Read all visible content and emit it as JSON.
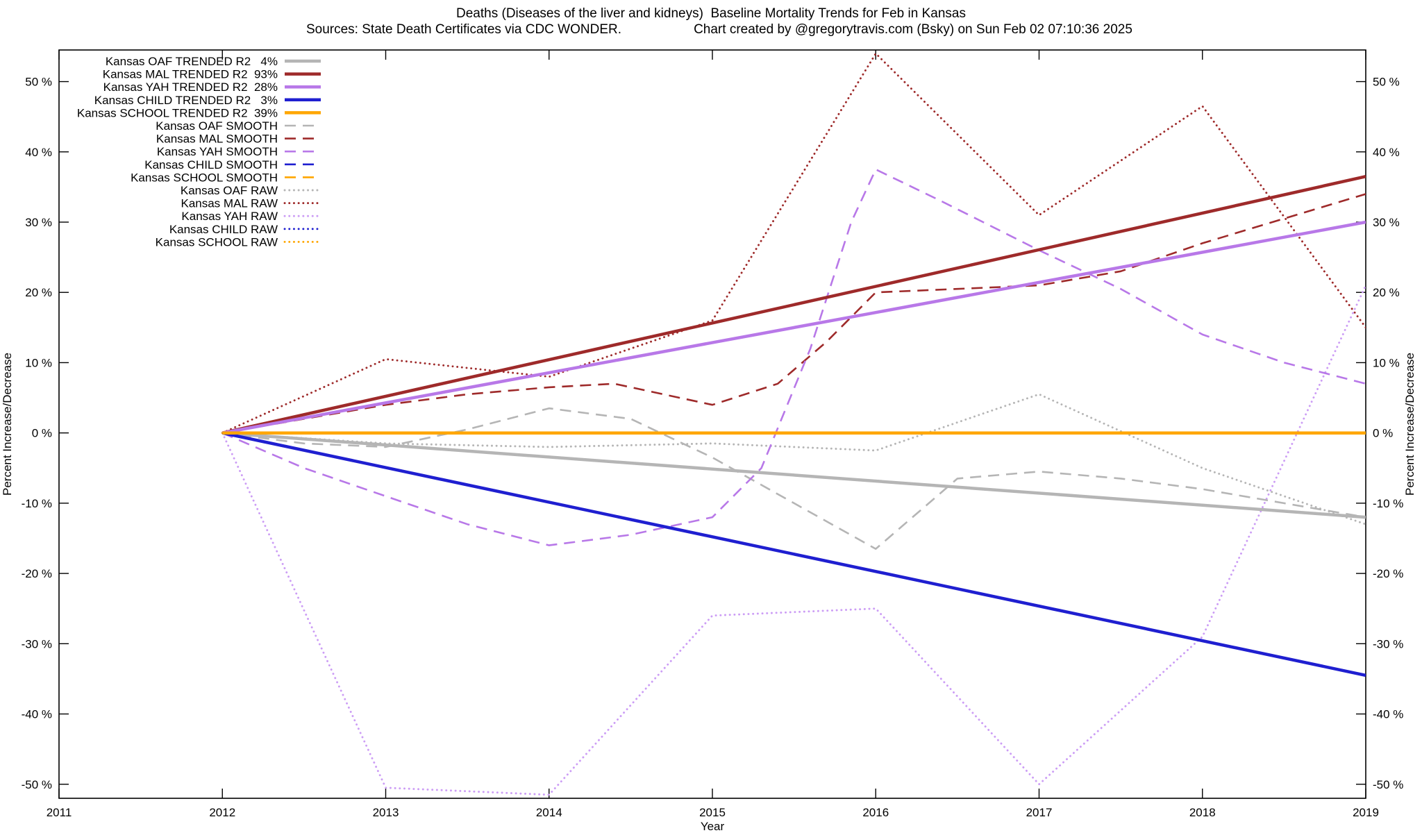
{
  "chart_data": {
    "type": "line",
    "title": "Deaths (Diseases of the liver and kidneys)  Baseline Mortality Trends for Feb in Kansas",
    "source_note": "Sources: State Death Certificates via CDC WONDER.",
    "credit_note": "Chart created by @gregorytravis.com (Bsky) on Sun Feb 02 07:10:36 2025",
    "xlabel": "Year",
    "ylabel": "Percent Increase/Decrease",
    "y2label": "Percent Increase/Decrease",
    "xlim": [
      2011,
      2019
    ],
    "ylim": [
      -52,
      54.5
    ],
    "xticks": [
      2011,
      2012,
      2013,
      2014,
      2015,
      2016,
      2017,
      2018,
      2019
    ],
    "yticks": [
      -50,
      -40,
      -30,
      -20,
      -10,
      0,
      10,
      20,
      30,
      40,
      50
    ],
    "ytick_suffix": " %",
    "grid": false,
    "legend_position": "top-left-inside",
    "series": [
      {
        "id": "oaf-trended",
        "label": "Kansas OAF TRENDED R2   4%",
        "color": "#b5b5b5",
        "style": "solid",
        "points": [
          [
            2012,
            0
          ],
          [
            2019,
            -12
          ]
        ]
      },
      {
        "id": "mal-trended",
        "label": "Kansas MAL TRENDED R2  93%",
        "color": "#9e2a2a",
        "style": "solid",
        "points": [
          [
            2012,
            0
          ],
          [
            2019,
            36.5
          ]
        ]
      },
      {
        "id": "yah-trended",
        "label": "Kansas YAH TRENDED R2  28%",
        "color": "#b878e8",
        "style": "solid",
        "points": [
          [
            2012,
            0
          ],
          [
            2019,
            30
          ]
        ]
      },
      {
        "id": "child-trended",
        "label": "Kansas CHILD TRENDED R2   3%",
        "color": "#1f1fd0",
        "style": "solid",
        "points": [
          [
            2012,
            0
          ],
          [
            2019,
            -34.5
          ]
        ]
      },
      {
        "id": "school-trended",
        "label": "Kansas SCHOOL TRENDED R2  39%",
        "color": "#ffa600",
        "style": "solid",
        "points": [
          [
            2012,
            0
          ],
          [
            2019,
            0
          ]
        ]
      },
      {
        "id": "oaf-smooth",
        "label": "Kansas OAF SMOOTH",
        "color": "#b5b5b5",
        "style": "dashed",
        "points": [
          [
            2012,
            0
          ],
          [
            2012.5,
            -1.5
          ],
          [
            2013,
            -2
          ],
          [
            2013.5,
            0.5
          ],
          [
            2014,
            3.5
          ],
          [
            2014.5,
            2
          ],
          [
            2015,
            -3.5
          ],
          [
            2015.5,
            -10
          ],
          [
            2016,
            -16.5
          ],
          [
            2016.5,
            -6.5
          ],
          [
            2017,
            -5.5
          ],
          [
            2017.5,
            -6.5
          ],
          [
            2018,
            -8
          ],
          [
            2018.5,
            -10
          ],
          [
            2019,
            -12
          ]
        ]
      },
      {
        "id": "mal-smooth",
        "label": "Kansas MAL SMOOTH",
        "color": "#9e2a2a",
        "style": "dashed",
        "points": [
          [
            2012,
            0
          ],
          [
            2012.5,
            2
          ],
          [
            2013,
            4
          ],
          [
            2013.5,
            5.5
          ],
          [
            2014,
            6.5
          ],
          [
            2014.4,
            7
          ],
          [
            2015,
            4
          ],
          [
            2015.4,
            7
          ],
          [
            2015.7,
            13
          ],
          [
            2016,
            20
          ],
          [
            2016.5,
            20.5
          ],
          [
            2017,
            21
          ],
          [
            2017.5,
            23
          ],
          [
            2018,
            27
          ],
          [
            2018.5,
            30.5
          ],
          [
            2019,
            34
          ]
        ]
      },
      {
        "id": "yah-smooth",
        "label": "Kansas YAH SMOOTH",
        "color": "#b878e8",
        "style": "dashed",
        "points": [
          [
            2012,
            0
          ],
          [
            2012.5,
            -5
          ],
          [
            2013,
            -9
          ],
          [
            2013.5,
            -13
          ],
          [
            2014,
            -16
          ],
          [
            2014.5,
            -14.5
          ],
          [
            2015,
            -12
          ],
          [
            2015.3,
            -5
          ],
          [
            2015.6,
            12
          ],
          [
            2015.85,
            30
          ],
          [
            2016,
            37.5
          ],
          [
            2016.4,
            33
          ],
          [
            2017,
            26
          ],
          [
            2017.5,
            20.5
          ],
          [
            2018,
            14
          ],
          [
            2018.5,
            10
          ],
          [
            2019,
            7
          ]
        ]
      },
      {
        "id": "child-smooth",
        "label": "Kansas CHILD SMOOTH",
        "color": "#1f1fd0",
        "style": "dashed",
        "points": [
          [
            2012,
            0
          ],
          [
            2019,
            -34.5
          ]
        ]
      },
      {
        "id": "school-smooth",
        "label": "Kansas SCHOOL SMOOTH",
        "color": "#ffa600",
        "style": "dashed",
        "points": [
          [
            2012,
            0
          ],
          [
            2019,
            0
          ]
        ]
      },
      {
        "id": "oaf-raw",
        "label": "Kansas OAF RAW",
        "color": "#b5b5b5",
        "style": "dotted",
        "points": [
          [
            2012,
            0
          ],
          [
            2013,
            -1.5
          ],
          [
            2014,
            -2
          ],
          [
            2015,
            -1.5
          ],
          [
            2016,
            -2.5
          ],
          [
            2017,
            5.5
          ],
          [
            2018,
            -5
          ],
          [
            2019,
            -13
          ]
        ]
      },
      {
        "id": "mal-raw",
        "label": "Kansas MAL RAW",
        "color": "#9e2a2a",
        "style": "dotted",
        "points": [
          [
            2012,
            0
          ],
          [
            2013,
            10.5
          ],
          [
            2014,
            8
          ],
          [
            2015,
            16
          ],
          [
            2016,
            54
          ],
          [
            2017,
            31
          ],
          [
            2018,
            46.5
          ],
          [
            2019,
            15
          ]
        ]
      },
      {
        "id": "yah-raw",
        "label": "Kansas YAH RAW",
        "color": "#cc9df5",
        "style": "dotted",
        "points": [
          [
            2012,
            0
          ],
          [
            2013,
            -50.5
          ],
          [
            2014,
            -51.5
          ],
          [
            2015,
            -26
          ],
          [
            2016,
            -25
          ],
          [
            2017,
            -50
          ],
          [
            2018,
            -29
          ],
          [
            2019,
            21
          ]
        ]
      },
      {
        "id": "child-raw",
        "label": "Kansas CHILD RAW",
        "color": "#1f1fd0",
        "style": "dotted",
        "points": [
          [
            2012,
            0
          ],
          [
            2019,
            -34.5
          ]
        ]
      },
      {
        "id": "school-raw",
        "label": "Kansas SCHOOL RAW",
        "color": "#ffa600",
        "style": "dotted",
        "points": [
          [
            2012,
            0
          ],
          [
            2019,
            0
          ]
        ]
      }
    ]
  }
}
